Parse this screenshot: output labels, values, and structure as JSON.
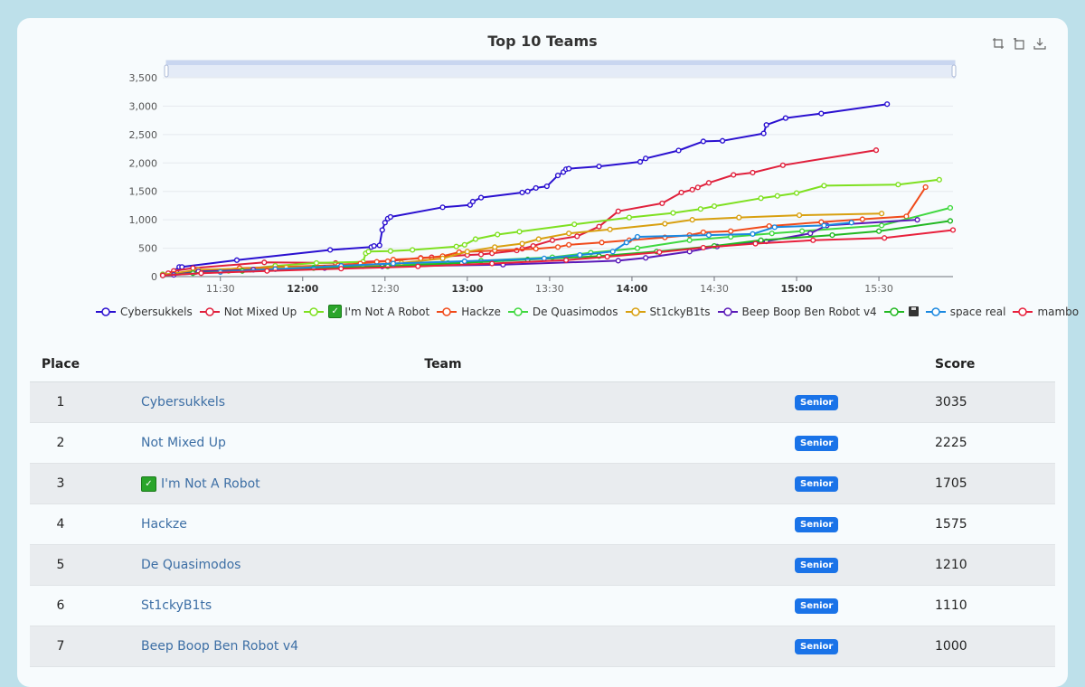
{
  "chart_data": {
    "type": "line",
    "title": "Top 10 Teams",
    "x_ticks": [
      "11:30",
      "12:00",
      "12:30",
      "13:00",
      "13:30",
      "14:00",
      "14:30",
      "15:00",
      "15:30"
    ],
    "x_ticks_bold": [
      false,
      true,
      false,
      true,
      false,
      true,
      false,
      true,
      false
    ],
    "y_ticks": [
      "0",
      "500",
      "1,000",
      "1,500",
      "2,000",
      "2,500",
      "3,000",
      "3,500"
    ],
    "ylim": [
      0,
      3500
    ],
    "xlim": [
      "11:09",
      "15:57"
    ],
    "grid": true,
    "legend_position": "bottom",
    "series": [
      {
        "name": "Cybersukkels",
        "color": "#2a10d0",
        "points": [
          [
            "11:14",
            100
          ],
          [
            "11:15",
            170
          ],
          [
            "11:16",
            170
          ],
          [
            "11:36",
            290
          ],
          [
            "12:10",
            470
          ],
          [
            "12:25",
            520
          ],
          [
            "12:26",
            540
          ],
          [
            "12:28",
            550
          ],
          [
            "12:29",
            820
          ],
          [
            "12:30",
            950
          ],
          [
            "12:31",
            1020
          ],
          [
            "12:32",
            1050
          ],
          [
            "12:51",
            1220
          ],
          [
            "13:01",
            1260
          ],
          [
            "13:02",
            1320
          ],
          [
            "13:05",
            1390
          ],
          [
            "13:20",
            1480
          ],
          [
            "13:22",
            1500
          ],
          [
            "13:25",
            1560
          ],
          [
            "13:29",
            1590
          ],
          [
            "13:33",
            1780
          ],
          [
            "13:35",
            1840
          ],
          [
            "13:36",
            1890
          ],
          [
            "13:37",
            1900
          ],
          [
            "13:48",
            1940
          ],
          [
            "14:03",
            2020
          ],
          [
            "14:05",
            2080
          ],
          [
            "14:17",
            2220
          ],
          [
            "14:26",
            2380
          ],
          [
            "14:33",
            2390
          ],
          [
            "14:48",
            2520
          ],
          [
            "14:49",
            2670
          ],
          [
            "14:56",
            2790
          ],
          [
            "15:09",
            2870
          ],
          [
            "15:33",
            3035
          ]
        ]
      },
      {
        "name": "Not Mixed Up",
        "color": "#e0203c",
        "points": [
          [
            "11:09",
            40
          ],
          [
            "11:11",
            60
          ],
          [
            "11:13",
            100
          ],
          [
            "11:20",
            150
          ],
          [
            "11:46",
            250
          ],
          [
            "12:12",
            240
          ],
          [
            "12:33",
            280
          ],
          [
            "12:43",
            330
          ],
          [
            "12:47",
            340
          ],
          [
            "13:00",
            380
          ],
          [
            "13:05",
            390
          ],
          [
            "13:09",
            410
          ],
          [
            "13:18",
            460
          ],
          [
            "13:20",
            490
          ],
          [
            "13:24",
            540
          ],
          [
            "13:31",
            640
          ],
          [
            "13:40",
            710
          ],
          [
            "13:48",
            880
          ],
          [
            "13:55",
            1150
          ],
          [
            "14:11",
            1290
          ],
          [
            "14:18",
            1480
          ],
          [
            "14:22",
            1530
          ],
          [
            "14:24",
            1570
          ],
          [
            "14:28",
            1650
          ],
          [
            "14:37",
            1790
          ],
          [
            "14:44",
            1830
          ],
          [
            "14:55",
            1960
          ],
          [
            "15:29",
            2225
          ]
        ]
      },
      {
        "name": "I'm Not A Robot",
        "color": "#7ee020",
        "points": [
          [
            "11:09",
            40
          ],
          [
            "11:33",
            100
          ],
          [
            "11:50",
            190
          ],
          [
            "12:05",
            240
          ],
          [
            "12:22",
            260
          ],
          [
            "12:23",
            410
          ],
          [
            "12:24",
            440
          ],
          [
            "12:32",
            450
          ],
          [
            "12:40",
            470
          ],
          [
            "12:56",
            530
          ],
          [
            "12:59",
            560
          ],
          [
            "13:03",
            660
          ],
          [
            "13:11",
            740
          ],
          [
            "13:19",
            790
          ],
          [
            "13:39",
            920
          ],
          [
            "13:59",
            1040
          ],
          [
            "14:15",
            1120
          ],
          [
            "14:25",
            1190
          ],
          [
            "14:30",
            1240
          ],
          [
            "14:47",
            1380
          ],
          [
            "14:53",
            1420
          ],
          [
            "15:00",
            1470
          ],
          [
            "15:10",
            1600
          ],
          [
            "15:37",
            1620
          ],
          [
            "15:52",
            1705
          ]
        ]
      },
      {
        "name": "Hackze",
        "color": "#f04a1a",
        "points": [
          [
            "11:13",
            50
          ],
          [
            "11:21",
            80
          ],
          [
            "11:37",
            150
          ],
          [
            "12:13",
            200
          ],
          [
            "12:21",
            230
          ],
          [
            "12:27",
            260
          ],
          [
            "12:31",
            270
          ],
          [
            "12:33",
            300
          ],
          [
            "12:43",
            320
          ],
          [
            "12:51",
            360
          ],
          [
            "12:57",
            430
          ],
          [
            "13:10",
            460
          ],
          [
            "13:25",
            490
          ],
          [
            "13:33",
            520
          ],
          [
            "13:37",
            560
          ],
          [
            "13:49",
            600
          ],
          [
            "13:59",
            640
          ],
          [
            "14:12",
            690
          ],
          [
            "14:21",
            730
          ],
          [
            "14:26",
            780
          ],
          [
            "14:36",
            800
          ],
          [
            "14:50",
            890
          ],
          [
            "15:09",
            960
          ],
          [
            "15:24",
            1010
          ],
          [
            "15:40",
            1060
          ],
          [
            "15:47",
            1575
          ]
        ]
      },
      {
        "name": "De Quasimodos",
        "color": "#40d840",
        "points": [
          [
            "11:09",
            30
          ],
          [
            "11:23",
            80
          ],
          [
            "11:41",
            120
          ],
          [
            "12:04",
            160
          ],
          [
            "12:33",
            200
          ],
          [
            "12:53",
            240
          ],
          [
            "13:05",
            280
          ],
          [
            "13:31",
            340
          ],
          [
            "13:45",
            420
          ],
          [
            "14:02",
            500
          ],
          [
            "14:21",
            640
          ],
          [
            "14:36",
            700
          ],
          [
            "14:51",
            760
          ],
          [
            "15:02",
            800
          ],
          [
            "15:31",
            900
          ],
          [
            "15:56",
            1210
          ]
        ]
      },
      {
        "name": "St1ckyB1ts",
        "color": "#d8a010",
        "points": [
          [
            "11:09",
            30
          ],
          [
            "11:22",
            120
          ],
          [
            "11:54",
            160
          ],
          [
            "12:22",
            180
          ],
          [
            "12:36",
            240
          ],
          [
            "12:51",
            320
          ],
          [
            "13:00",
            440
          ],
          [
            "13:10",
            520
          ],
          [
            "13:20",
            580
          ],
          [
            "13:26",
            660
          ],
          [
            "13:37",
            760
          ],
          [
            "13:52",
            830
          ],
          [
            "14:12",
            930
          ],
          [
            "14:22",
            1000
          ],
          [
            "14:39",
            1040
          ],
          [
            "15:01",
            1080
          ],
          [
            "15:31",
            1110
          ]
        ]
      },
      {
        "name": "Beep Boop Ben Robot v4",
        "color": "#5a1ab8",
        "points": [
          [
            "11:13",
            30
          ],
          [
            "11:22",
            90
          ],
          [
            "11:42",
            120
          ],
          [
            "12:08",
            150
          ],
          [
            "12:29",
            180
          ],
          [
            "13:13",
            210
          ],
          [
            "13:55",
            280
          ],
          [
            "14:05",
            330
          ],
          [
            "14:21",
            440
          ],
          [
            "14:31",
            530
          ],
          [
            "14:49",
            620
          ],
          [
            "15:05",
            760
          ],
          [
            "15:11",
            900
          ],
          [
            "15:44",
            1000
          ]
        ]
      },
      {
        "name": "💾",
        "color": "#22b822",
        "points": [
          [
            "11:09",
            20
          ],
          [
            "11:20",
            60
          ],
          [
            "11:38",
            100
          ],
          [
            "12:04",
            150
          ],
          [
            "12:31",
            180
          ],
          [
            "12:58",
            240
          ],
          [
            "13:22",
            300
          ],
          [
            "13:48",
            360
          ],
          [
            "14:09",
            440
          ],
          [
            "14:30",
            540
          ],
          [
            "14:47",
            640
          ],
          [
            "15:13",
            730
          ],
          [
            "15:30",
            800
          ],
          [
            "15:56",
            980
          ]
        ]
      },
      {
        "name": "space real",
        "color": "#1a88e0",
        "points": [
          [
            "11:09",
            20
          ],
          [
            "11:30",
            80
          ],
          [
            "11:50",
            130
          ],
          [
            "12:14",
            190
          ],
          [
            "12:33",
            230
          ],
          [
            "12:59",
            270
          ],
          [
            "13:28",
            320
          ],
          [
            "13:41",
            380
          ],
          [
            "13:53",
            440
          ],
          [
            "13:58",
            600
          ],
          [
            "14:02",
            700
          ],
          [
            "14:28",
            730
          ],
          [
            "14:44",
            750
          ],
          [
            "14:52",
            870
          ],
          [
            "15:10",
            900
          ],
          [
            "15:20",
            950
          ]
        ]
      },
      {
        "name": "mambo",
        "color": "#e8203c",
        "points": [
          [
            "11:09",
            20
          ],
          [
            "11:23",
            60
          ],
          [
            "11:47",
            100
          ],
          [
            "12:14",
            140
          ],
          [
            "12:42",
            180
          ],
          [
            "13:09",
            230
          ],
          [
            "13:36",
            290
          ],
          [
            "13:51",
            350
          ],
          [
            "14:10",
            430
          ],
          [
            "14:26",
            510
          ],
          [
            "14:45",
            580
          ],
          [
            "15:06",
            640
          ],
          [
            "15:32",
            680
          ],
          [
            "15:57",
            820
          ]
        ]
      }
    ]
  },
  "legend": {
    "labels": [
      "Cybersukkels",
      "Not Mixed Up",
      "I'm Not A Robot",
      "Hackze",
      "De Quasimodos",
      "St1ckyB1ts",
      "Beep Boop Ben Robot v4",
      "",
      "space real",
      "mambo"
    ]
  },
  "toolbox": {
    "icons": [
      "zoom-icon",
      "restore-icon",
      "save-image-icon"
    ]
  },
  "table": {
    "headers": {
      "place": "Place",
      "team": "Team",
      "score": "Score"
    },
    "rows": [
      {
        "place": "1",
        "team": "Cybersukkels",
        "badge": "Senior",
        "score": "3035",
        "has_check": false
      },
      {
        "place": "2",
        "team": "Not Mixed Up",
        "badge": "Senior",
        "score": "2225",
        "has_check": false
      },
      {
        "place": "3",
        "team": "I'm Not A Robot",
        "badge": "Senior",
        "score": "1705",
        "has_check": true
      },
      {
        "place": "4",
        "team": "Hackze",
        "badge": "Senior",
        "score": "1575",
        "has_check": false
      },
      {
        "place": "5",
        "team": "De Quasimodos",
        "badge": "Senior",
        "score": "1210",
        "has_check": false
      },
      {
        "place": "6",
        "team": "St1ckyB1ts",
        "badge": "Senior",
        "score": "1110",
        "has_check": false
      },
      {
        "place": "7",
        "team": "Beep Boop Ben Robot v4",
        "badge": "Senior",
        "score": "1000",
        "has_check": false
      }
    ]
  }
}
